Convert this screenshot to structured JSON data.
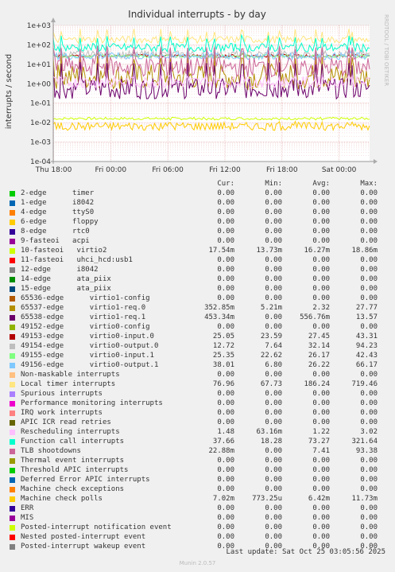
{
  "chart_data": {
    "type": "line",
    "title": "Individual interrupts - by day",
    "ylabel": "interrupts / second",
    "yscale": "log",
    "ylim": [
      0.0001,
      1000
    ],
    "y_ticks": [
      "1e-04",
      "1e-03",
      "1e-02",
      "1e-01",
      "1e+00",
      "1e+01",
      "1e+02",
      "1e+03"
    ],
    "x_ticks": [
      "Thu 18:00",
      "Fri 00:00",
      "Fri 06:00",
      "Fri 12:00",
      "Fri 18:00",
      "Sat 00:00"
    ],
    "grid": true,
    "legend_position": "bottom",
    "headers": [
      "Cur:",
      "Min:",
      "Avg:",
      "Max:"
    ],
    "series": [
      {
        "name": "2-edge      timer",
        "color": "#00cc00",
        "cur": "0.00",
        "min": "0.00",
        "avg": "0.00",
        "max": "0.00"
      },
      {
        "name": "1-edge      i8042",
        "color": "#0066b3",
        "cur": "0.00",
        "min": "0.00",
        "avg": "0.00",
        "max": "0.00"
      },
      {
        "name": "4-edge      ttyS0",
        "color": "#ff8000",
        "cur": "0.00",
        "min": "0.00",
        "avg": "0.00",
        "max": "0.00"
      },
      {
        "name": "6-edge      floppy",
        "color": "#ffcc00",
        "cur": "0.00",
        "min": "0.00",
        "avg": "0.00",
        "max": "0.00"
      },
      {
        "name": "8-edge      rtc0",
        "color": "#330099",
        "cur": "0.00",
        "min": "0.00",
        "avg": "0.00",
        "max": "0.00"
      },
      {
        "name": "9-fasteoi   acpi",
        "color": "#990099",
        "cur": "0.00",
        "min": "0.00",
        "avg": "0.00",
        "max": "0.00"
      },
      {
        "name": "10-fasteoi   virtio2",
        "color": "#ccff00",
        "cur": "17.54m",
        "min": "13.73m",
        "avg": "16.27m",
        "max": "18.86m"
      },
      {
        "name": "11-fasteoi   uhci_hcd:usb1",
        "color": "#ff0000",
        "cur": "0.00",
        "min": "0.00",
        "avg": "0.00",
        "max": "0.00"
      },
      {
        "name": "12-edge      i8042",
        "color": "#808080",
        "cur": "0.00",
        "min": "0.00",
        "avg": "0.00",
        "max": "0.00"
      },
      {
        "name": "14-edge      ata_piix",
        "color": "#008f00",
        "cur": "0.00",
        "min": "0.00",
        "avg": "0.00",
        "max": "0.00"
      },
      {
        "name": "15-edge      ata_piix",
        "color": "#00487d",
        "cur": "0.00",
        "min": "0.00",
        "avg": "0.00",
        "max": "0.00"
      },
      {
        "name": "65536-edge      virtio1-config",
        "color": "#b35a00",
        "cur": "0.00",
        "min": "0.00",
        "avg": "0.00",
        "max": "0.00"
      },
      {
        "name": "65537-edge      virtio1-req.0",
        "color": "#b38f00",
        "cur": "352.85m",
        "min": "5.21m",
        "avg": "2.32",
        "max": "27.77"
      },
      {
        "name": "65538-edge      virtio1-req.1",
        "color": "#6b006b",
        "cur": "453.34m",
        "min": "0.00",
        "avg": "556.76m",
        "max": "13.57"
      },
      {
        "name": "49152-edge      virtio0-config",
        "color": "#8fb300",
        "cur": "0.00",
        "min": "0.00",
        "avg": "0.00",
        "max": "0.00"
      },
      {
        "name": "49153-edge      virtio0-input.0",
        "color": "#b30000",
        "cur": "25.05",
        "min": "23.59",
        "avg": "27.45",
        "max": "43.31"
      },
      {
        "name": "49154-edge      virtio0-output.0",
        "color": "#bebebe",
        "cur": "12.72",
        "min": "7.64",
        "avg": "32.14",
        "max": "94.23"
      },
      {
        "name": "49155-edge      virtio0-input.1",
        "color": "#80ff80",
        "cur": "25.35",
        "min": "22.62",
        "avg": "26.17",
        "max": "42.43"
      },
      {
        "name": "49156-edge      virtio0-output.1",
        "color": "#80c9ff",
        "cur": "38.01",
        "min": "6.80",
        "avg": "26.22",
        "max": "66.17"
      },
      {
        "name": "Non-maskable interrupts",
        "color": "#ffc080",
        "cur": "0.00",
        "min": "0.00",
        "avg": "0.00",
        "max": "0.00"
      },
      {
        "name": "Local timer interrupts",
        "color": "#ffe680",
        "cur": "76.96",
        "min": "67.73",
        "avg": "186.24",
        "max": "719.46"
      },
      {
        "name": "Spurious interrupts",
        "color": "#aa80ff",
        "cur": "0.00",
        "min": "0.00",
        "avg": "0.00",
        "max": "0.00"
      },
      {
        "name": "Performance monitoring interrupts",
        "color": "#ee00cc",
        "cur": "0.00",
        "min": "0.00",
        "avg": "0.00",
        "max": "0.00"
      },
      {
        "name": "IRQ work interrupts",
        "color": "#ff8080",
        "cur": "0.00",
        "min": "0.00",
        "avg": "0.00",
        "max": "0.00"
      },
      {
        "name": "APIC ICR read retries",
        "color": "#666600",
        "cur": "0.00",
        "min": "0.00",
        "avg": "0.00",
        "max": "0.00"
      },
      {
        "name": "Rescheduling interrupts",
        "color": "#ffbfff",
        "cur": "1.48",
        "min": "63.16m",
        "avg": "1.22",
        "max": "3.02"
      },
      {
        "name": "Function call interrupts",
        "color": "#00ffcc",
        "cur": "37.66",
        "min": "18.28",
        "avg": "73.27",
        "max": "321.64"
      },
      {
        "name": "TLB shootdowns",
        "color": "#cc6699",
        "cur": "22.88m",
        "min": "0.00",
        "avg": "7.41",
        "max": "93.38"
      },
      {
        "name": "Thermal event interrupts",
        "color": "#999900",
        "cur": "0.00",
        "min": "0.00",
        "avg": "0.00",
        "max": "0.00"
      },
      {
        "name": "Threshold APIC interrupts",
        "color": "#00cc00",
        "cur": "0.00",
        "min": "0.00",
        "avg": "0.00",
        "max": "0.00"
      },
      {
        "name": "Deferred Error APIC interrupts",
        "color": "#0066b3",
        "cur": "0.00",
        "min": "0.00",
        "avg": "0.00",
        "max": "0.00"
      },
      {
        "name": "Machine check exceptions",
        "color": "#ff8000",
        "cur": "0.00",
        "min": "0.00",
        "avg": "0.00",
        "max": "0.00"
      },
      {
        "name": "Machine check polls",
        "color": "#ffcc00",
        "cur": "7.02m",
        "min": "773.25u",
        "avg": "6.42m",
        "max": "11.73m"
      },
      {
        "name": "ERR",
        "color": "#330099",
        "cur": "0.00",
        "min": "0.00",
        "avg": "0.00",
        "max": "0.00"
      },
      {
        "name": "MIS",
        "color": "#990099",
        "cur": "0.00",
        "min": "0.00",
        "avg": "0.00",
        "max": "0.00"
      },
      {
        "name": "Posted-interrupt notification event",
        "color": "#ccff00",
        "cur": "0.00",
        "min": "0.00",
        "avg": "0.00",
        "max": "0.00"
      },
      {
        "name": "Nested posted-interrupt event",
        "color": "#ff0000",
        "cur": "0.00",
        "min": "0.00",
        "avg": "0.00",
        "max": "0.00"
      },
      {
        "name": "Posted-interrupt wakeup event",
        "color": "#808080",
        "cur": "0.00",
        "min": "0.00",
        "avg": "0.00",
        "max": "0.00"
      }
    ]
  },
  "footer": "Last update: Sat Oct 25 03:05:56 2025",
  "watermark": "RRDTOOL / TOBI OETIKER",
  "munin_version": "Munin 2.0.57"
}
